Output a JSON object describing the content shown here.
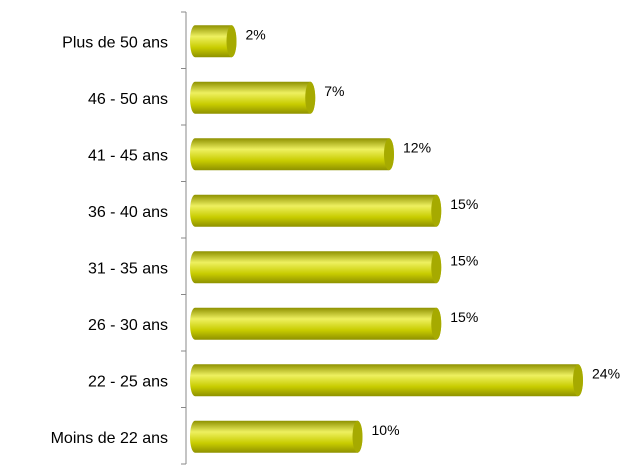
{
  "chart_data": {
    "type": "bar",
    "orientation": "horizontal",
    "categories": [
      "Plus de 50 ans",
      "46 - 50 ans",
      "41 - 45 ans",
      "36 - 40 ans",
      "31 - 35 ans",
      "26 - 30 ans",
      "22 - 25 ans",
      "Moins de 22 ans"
    ],
    "values": [
      2,
      7,
      12,
      15,
      15,
      15,
      24,
      10
    ],
    "value_labels": [
      "2%",
      "7%",
      "12%",
      "15%",
      "15%",
      "15%",
      "24%",
      "10%"
    ],
    "unit": "%",
    "xlim": [
      0,
      24
    ],
    "grid": false,
    "legend": "none",
    "style": "3d-cylinder",
    "colors": {
      "bar_main": "#c8cc00",
      "bar_light": "#eef060",
      "bar_dark": "#8e9100",
      "bar_end": "#a6aa00",
      "axis": "#888888"
    }
  }
}
